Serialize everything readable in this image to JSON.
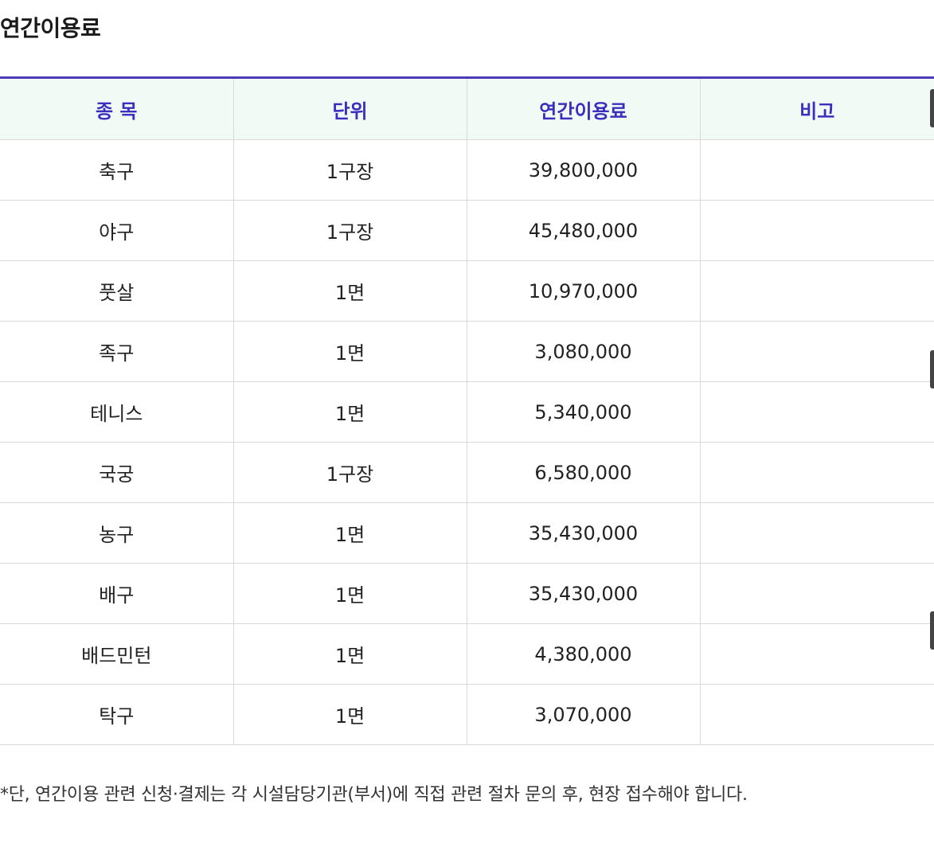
{
  "page": {
    "title": "연간이용료"
  },
  "table": {
    "headers": [
      "종 목",
      "단위",
      "연간이용료",
      "비고"
    ],
    "rows": [
      {
        "sport": "축구",
        "unit": "1구장",
        "fee": "39,800,000",
        "note": ""
      },
      {
        "sport": "야구",
        "unit": "1구장",
        "fee": "45,480,000",
        "note": ""
      },
      {
        "sport": "풋살",
        "unit": "1면",
        "fee": "10,970,000",
        "note": ""
      },
      {
        "sport": "족구",
        "unit": "1면",
        "fee": "3,080,000",
        "note": ""
      },
      {
        "sport": "테니스",
        "unit": "1면",
        "fee": "5,340,000",
        "note": ""
      },
      {
        "sport": "국궁",
        "unit": "1구장",
        "fee": "6,580,000",
        "note": ""
      },
      {
        "sport": "농구",
        "unit": "1면",
        "fee": "35,430,000",
        "note": ""
      },
      {
        "sport": "배구",
        "unit": "1면",
        "fee": "35,430,000",
        "note": ""
      },
      {
        "sport": "배드민턴",
        "unit": "1면",
        "fee": "4,380,000",
        "note": ""
      },
      {
        "sport": "탁구",
        "unit": "1면",
        "fee": "3,070,000",
        "note": ""
      }
    ]
  },
  "footnote": "*단, 연간이용 관련 신청·결제는 각 시설담당기관(부서)에 직접 관련 절차 문의 후, 현장 접수해야 합니다.",
  "colors": {
    "header_text": "#3b2fc0",
    "header_bg": "#f2faf6",
    "top_border": "#4b3bb5",
    "grid": "#d9d9d9"
  }
}
